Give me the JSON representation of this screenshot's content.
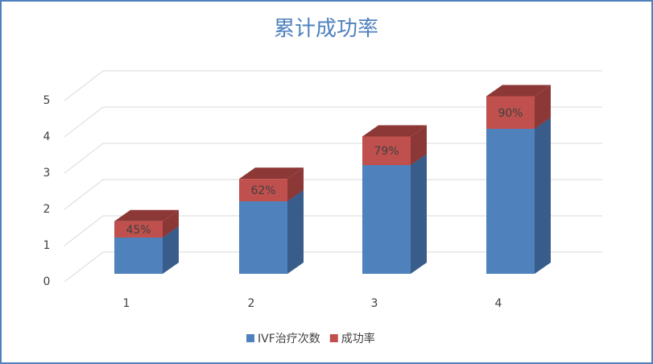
{
  "chart_data": {
    "type": "bar3d_stacked",
    "title": "累计成功率",
    "categories": [
      "1",
      "2",
      "3",
      "4"
    ],
    "series": [
      {
        "name": "IVF治疗次数",
        "color": "#4f81bd",
        "side": "#385d8a",
        "values": [
          1,
          2,
          3,
          4
        ]
      },
      {
        "name": "成功率",
        "color": "#c0504d",
        "side": "#8c3836",
        "values": [
          0.45,
          0.62,
          0.79,
          0.9
        ],
        "value_labels": [
          "45%",
          "62%",
          "79%",
          "90%"
        ]
      }
    ],
    "ylim": [
      0,
      5
    ],
    "yticks": [
      0,
      1,
      2,
      3,
      4,
      5
    ],
    "grid": true,
    "legend": "bottom"
  }
}
